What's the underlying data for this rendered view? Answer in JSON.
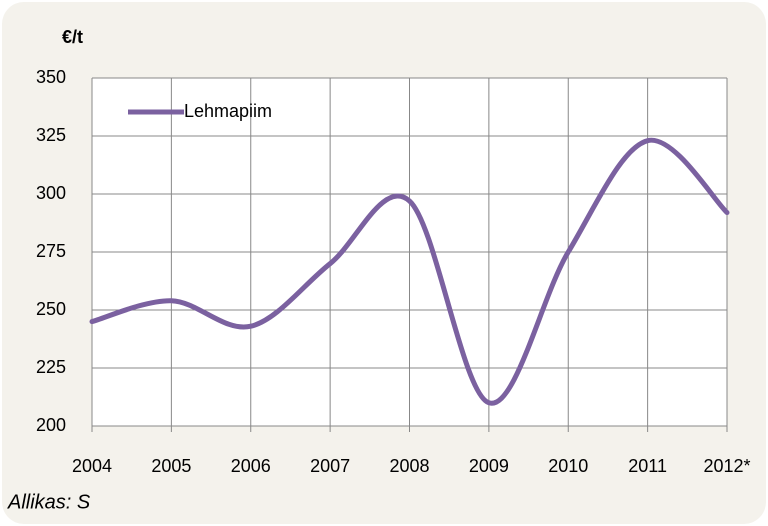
{
  "chart_data": {
    "type": "line",
    "title": "€/t",
    "source": "Allikas: S",
    "categories": [
      "2004",
      "2005",
      "2006",
      "2007",
      "2008",
      "2009",
      "2010",
      "2011",
      "2012*"
    ],
    "series": [
      {
        "name": "Lehmapiim",
        "color": "#7b61a0",
        "values": [
          245,
          254,
          243,
          270,
          297,
          210,
          275,
          323,
          292
        ]
      }
    ],
    "ylim": [
      200,
      350
    ],
    "yticks": [
      200,
      225,
      250,
      275,
      300,
      325,
      350
    ],
    "grid": true,
    "legend": "upper left",
    "smooth": true
  }
}
